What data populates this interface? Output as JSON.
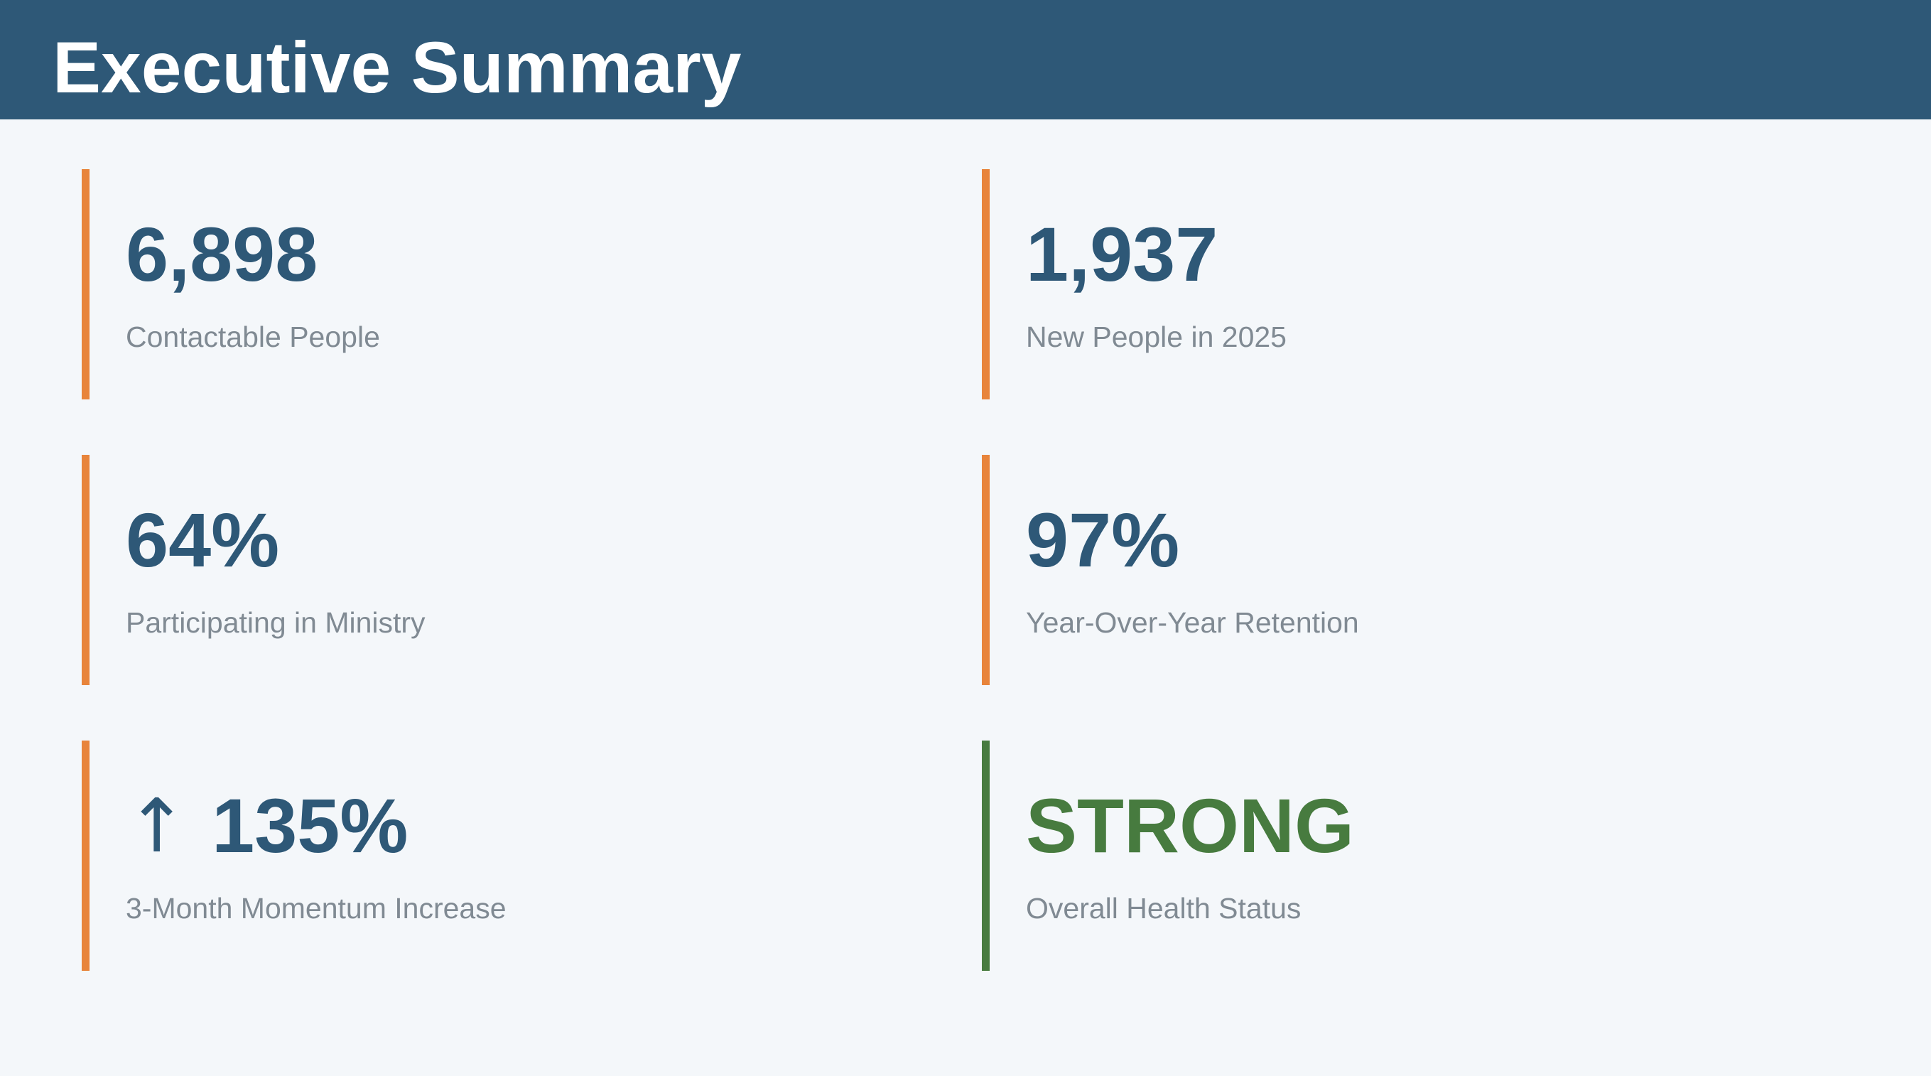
{
  "page": {
    "title": "Executive Summary"
  },
  "colors": {
    "header_background": "#2e5877",
    "page_background": "#f4f7fa",
    "accent_orange": "#e8843b",
    "accent_green": "#477b3f",
    "value_blue": "#2e5877",
    "label_gray": "#808a93"
  },
  "metrics": [
    {
      "value": "6,898",
      "label": "Contactable People",
      "accent_color": "#e8843b",
      "value_color": "#2e5877"
    },
    {
      "value": "1,937",
      "label": "New People in 2025",
      "accent_color": "#e8843b",
      "value_color": "#2e5877"
    },
    {
      "value": "64%",
      "label": "Participating in Ministry",
      "accent_color": "#e8843b",
      "value_color": "#2e5877"
    },
    {
      "value": "97%",
      "label": "Year-Over-Year Retention",
      "accent_color": "#e8843b",
      "value_color": "#2e5877"
    },
    {
      "icon": "arrow-up-icon",
      "icon_glyph": "↑",
      "value": "135%",
      "label": "3-Month Momentum Increase",
      "accent_color": "#e8843b",
      "value_color": "#2e5877"
    },
    {
      "value": "STRONG",
      "label": "Overall Health Status",
      "accent_color": "#477b3f",
      "value_color": "#477b3f"
    }
  ]
}
